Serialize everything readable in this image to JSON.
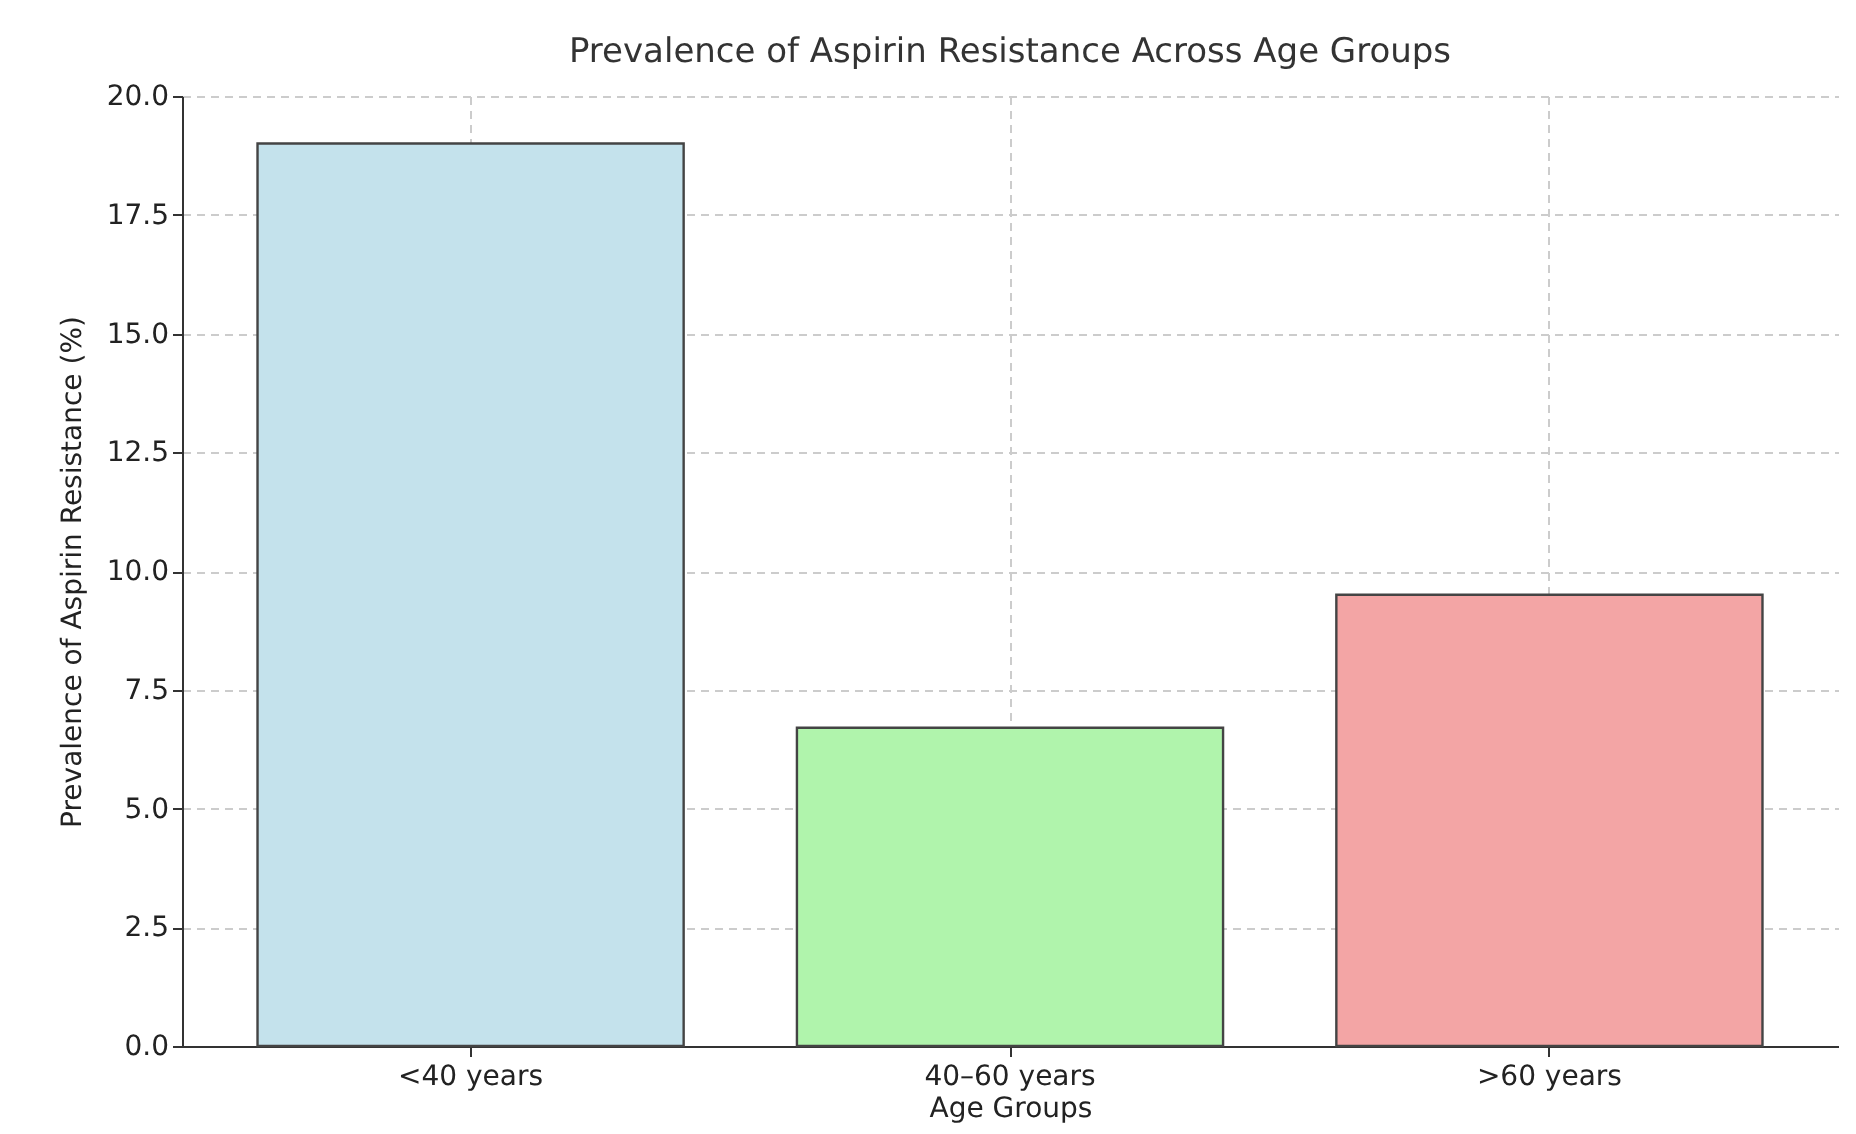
{
  "chart_data": {
    "type": "bar",
    "title": "Prevalence of Aspirin Resistance Across Age Groups",
    "xlabel": "Age Groups",
    "ylabel": "Prevalence of Aspirin Resistance (%)",
    "categories": [
      "<40 years",
      "40–60 years",
      ">60 years"
    ],
    "values": [
      19.0,
      6.7,
      9.5
    ],
    "colors": [
      "#c4e2ec",
      "#b0f4ac",
      "#f3a5a5"
    ],
    "ylim": [
      0,
      20
    ],
    "yticks": [
      {
        "value": 0,
        "label": "0.0"
      },
      {
        "value": 2.5,
        "label": "2.5"
      },
      {
        "value": 5,
        "label": "5.0"
      },
      {
        "value": 7.5,
        "label": "7.5"
      },
      {
        "value": 10,
        "label": "10.0"
      },
      {
        "value": 12.5,
        "label": "12.5"
      },
      {
        "value": 15,
        "label": "15.0"
      },
      {
        "value": 17.5,
        "label": "17.5"
      },
      {
        "value": 20,
        "label": "20.0"
      }
    ],
    "grid": true
  }
}
